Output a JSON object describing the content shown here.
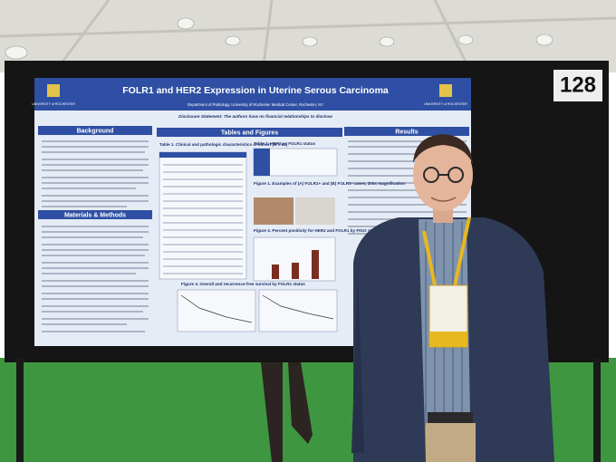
{
  "booth_number": "128",
  "poster": {
    "logo_text": "UNIVERSITY of ROCHESTER",
    "title": "FOLR1 and HER2 Expression in Uterine Serous Carcinoma",
    "affiliation": "Department of Pathology, University of Rochester Medical Center, Rochester, NY",
    "disclosure": "Disclosure Statement: The authors have no financial relationships to disclose",
    "sections": [
      "Background",
      "Materials & Methods",
      "Tables and Figures",
      "Results"
    ],
    "captions": [
      "Table 1. Clinical and pathologic characteristics of cohort (N = 63)",
      "Table 2: HER2 vs FOLR1 status",
      "Figure 1. Examples of (A) FOLR1+ and (B) FOLR1- cases, 200x magnification",
      "Figure 2. Percent positivity for HER2 and FOLR1 by FIGO stage",
      "Figure 3. Overall and recurrence-free survival by FOLR1 status"
    ]
  }
}
